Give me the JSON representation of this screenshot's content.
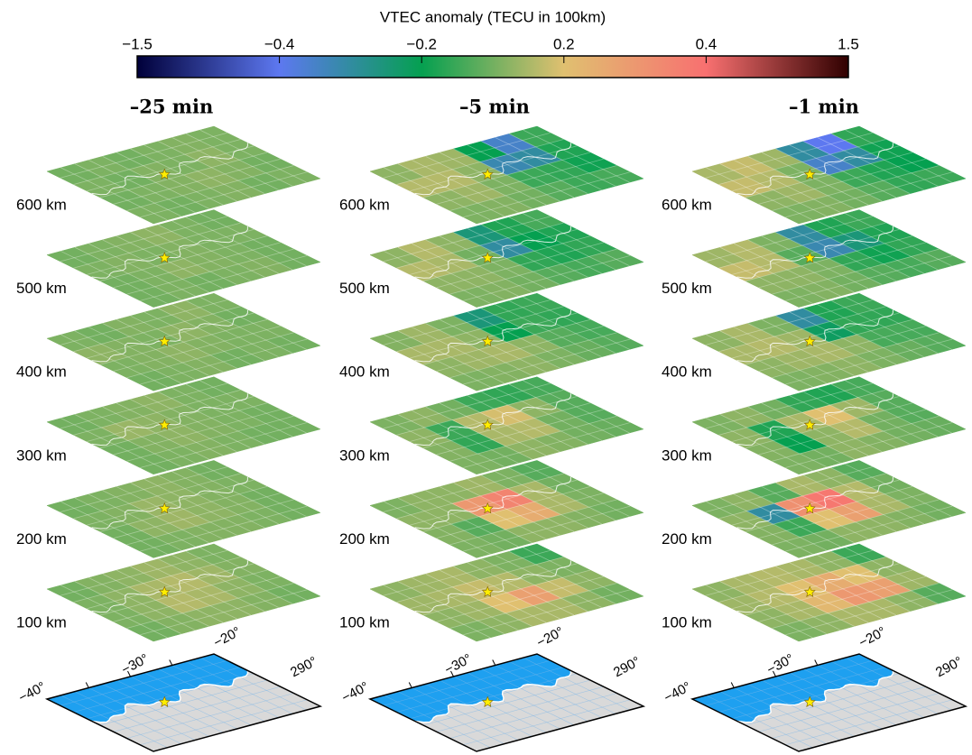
{
  "chart_data": {
    "type": "heatmap",
    "title": "VTEC anomaly (TECU in 100km)",
    "colorbar": {
      "xticks": [
        {
          "value": -1.5,
          "label": "−1.5"
        },
        {
          "value": -0.4,
          "label": "−0.4"
        },
        {
          "value": -0.2,
          "label": "−0.2"
        },
        0.2,
        0.4,
        1.5
      ],
      "colors": [
        "#00003a",
        "#5d78f0",
        "#05a050",
        "#e0c070",
        "#f87070",
        "#300000"
      ]
    },
    "panels": [
      {
        "title": "–25 min",
        "layers": [
          {
            "label": "600 km",
            "values": [
              [
                0,
                0.02,
                0,
                0.02,
                0.03,
                0.02
              ],
              [
                0.02,
                0,
                0.03,
                0.02,
                0.05,
                0.02
              ],
              [
                0,
                0.02,
                0.03,
                0.05,
                0.03,
                0
              ],
              [
                0.02,
                0,
                0.02,
                0.03,
                0,
                0.02
              ]
            ]
          },
          {
            "label": "500 km",
            "values": [
              [
                0,
                0.02,
                0.03,
                0.05,
                0.02,
                0
              ],
              [
                0.02,
                0.03,
                0.02,
                0.03,
                0.02,
                0.02
              ],
              [
                0,
                0.02,
                0.05,
                0.03,
                0.02,
                0
              ],
              [
                0,
                0.02,
                0,
                0.02,
                0.03,
                0
              ]
            ]
          },
          {
            "label": "400 km",
            "values": [
              [
                0.02,
                0,
                0.03,
                0.02,
                0.05,
                0.02
              ],
              [
                0.05,
                0.03,
                0.02,
                0.05,
                0.03,
                0
              ],
              [
                0.02,
                0.03,
                0.05,
                0.03,
                0.02,
                0.02
              ],
              [
                0,
                0.02,
                0.03,
                0,
                0.02,
                0
              ]
            ]
          },
          {
            "label": "300 km",
            "values": [
              [
                0,
                0.02,
                0.03,
                0.05,
                0.02,
                0
              ],
              [
                0.02,
                0.07,
                0.05,
                0.03,
                0.02,
                0.02
              ],
              [
                0,
                0.03,
                0.05,
                0.03,
                0.02,
                0
              ],
              [
                0,
                0.02,
                0.03,
                0.02,
                0,
                0
              ]
            ]
          },
          {
            "label": "200 km",
            "values": [
              [
                0,
                0.02,
                0.03,
                0.05,
                0.03,
                0
              ],
              [
                0.02,
                0.03,
                0.07,
                0.05,
                0.03,
                0.02
              ],
              [
                0,
                0.05,
                0.08,
                0.05,
                0.03,
                0
              ],
              [
                0,
                0.02,
                0.03,
                0.03,
                0.02,
                0
              ]
            ]
          },
          {
            "label": "100 km",
            "values": [
              [
                0,
                0.03,
                0.05,
                0.08,
                0.05,
                0.02
              ],
              [
                0.02,
                0.05,
                0.1,
                0.12,
                0.08,
                0.03
              ],
              [
                0.02,
                0.05,
                0.12,
                0.1,
                0.05,
                0.02
              ],
              [
                0,
                0.03,
                0.05,
                0.05,
                0.03,
                0
              ]
            ]
          }
        ]
      },
      {
        "title": "–5 min",
        "layers": [
          {
            "label": "600 km",
            "values": [
              [
                0.05,
                0.1,
                0.08,
                -0.2,
                -0.35,
                -0.1
              ],
              [
                0.12,
                0.12,
                0.05,
                -0.32,
                -0.3,
                -0.15
              ],
              [
                0.05,
                0.08,
                0.02,
                -0.1,
                -0.12,
                -0.18
              ],
              [
                0.02,
                0.03,
                0,
                -0.05,
                -0.1,
                -0.08
              ]
            ]
          },
          {
            "label": "500 km",
            "values": [
              [
                0.05,
                0.12,
                0.05,
                -0.25,
                -0.15,
                -0.08
              ],
              [
                0.12,
                0.1,
                0,
                -0.3,
                -0.2,
                -0.15
              ],
              [
                0.05,
                0.05,
                0.02,
                -0.12,
                -0.15,
                -0.12
              ],
              [
                0.02,
                0.03,
                0,
                -0.05,
                -0.08,
                -0.05
              ]
            ]
          },
          {
            "label": "400 km",
            "values": [
              [
                0.03,
                0.08,
                0.02,
                -0.25,
                -0.12,
                -0.1
              ],
              [
                0.1,
                0.1,
                0.05,
                -0.2,
                -0.1,
                -0.12
              ],
              [
                0.05,
                0.08,
                0.1,
                0.05,
                -0.05,
                -0.08
              ],
              [
                0.02,
                0.03,
                0.05,
                0.02,
                -0.02,
                -0.05
              ]
            ]
          },
          {
            "label": "300 km",
            "values": [
              [
                0.02,
                0.05,
                0,
                -0.1,
                -0.12,
                -0.08
              ],
              [
                0.05,
                -0.1,
                0.12,
                0.18,
                0.05,
                -0.05
              ],
              [
                0.03,
                -0.12,
                0.1,
                0.12,
                0,
                -0.05
              ],
              [
                0.02,
                0,
                0.05,
                0.03,
                0,
                -0.02
              ]
            ]
          },
          {
            "label": "200 km",
            "values": [
              [
                0.02,
                0.05,
                0.05,
                0.08,
                0.02,
                -0.05
              ],
              [
                0.05,
                0.05,
                0.3,
                0.35,
                0.1,
                0
              ],
              [
                0.03,
                -0.05,
                0.2,
                0.25,
                0.1,
                0.02
              ],
              [
                0.02,
                0,
                0.05,
                0.05,
                0.03,
                0
              ]
            ]
          },
          {
            "label": "100 km",
            "values": [
              [
                0.05,
                0.08,
                0.1,
                0.05,
                0.02,
                -0.1
              ],
              [
                0.08,
                0.1,
                0.15,
                0.12,
                0.05,
                0.02
              ],
              [
                0.05,
                0.08,
                0.2,
                0.28,
                0.15,
                0.05
              ],
              [
                0.02,
                0.05,
                0.1,
                0.1,
                0.05,
                0
              ]
            ]
          }
        ]
      },
      {
        "title": "–1 min",
        "layers": [
          {
            "label": "600 km",
            "values": [
              [
                0.1,
                0.15,
                0.08,
                -0.3,
                -0.4,
                -0.12
              ],
              [
                0.15,
                0.12,
                0.02,
                -0.35,
                -0.3,
                -0.18
              ],
              [
                0.05,
                0.08,
                0.02,
                -0.1,
                -0.15,
                -0.2
              ],
              [
                0.02,
                0.03,
                0,
                -0.05,
                -0.12,
                -0.1
              ]
            ]
          },
          {
            "label": "500 km",
            "values": [
              [
                0.08,
                0.12,
                0.02,
                -0.3,
                -0.15,
                -0.1
              ],
              [
                0.15,
                0.12,
                -0.05,
                -0.32,
                -0.25,
                -0.15
              ],
              [
                0.05,
                0.05,
                0.02,
                -0.12,
                -0.18,
                -0.12
              ],
              [
                0.02,
                0.03,
                0,
                -0.05,
                -0.08,
                -0.05
              ]
            ]
          },
          {
            "label": "400 km",
            "values": [
              [
                0.05,
                0.1,
                0.02,
                -0.3,
                -0.15,
                -0.1
              ],
              [
                0.1,
                0.12,
                0.08,
                -0.22,
                -0.12,
                -0.12
              ],
              [
                0.05,
                0.08,
                0.1,
                0.05,
                -0.08,
                -0.08
              ],
              [
                0.02,
                0.03,
                0.05,
                0.02,
                -0.02,
                -0.05
              ]
            ]
          },
          {
            "label": "300 km",
            "values": [
              [
                0.02,
                0.05,
                0,
                -0.12,
                -0.15,
                -0.08
              ],
              [
                0.05,
                -0.15,
                0.1,
                0.2,
                0.08,
                -0.05
              ],
              [
                0.03,
                -0.2,
                0.05,
                0.12,
                0,
                -0.05
              ],
              [
                0.02,
                0,
                0.05,
                0.03,
                0,
                -0.02
              ]
            ]
          },
          {
            "label": "200 km",
            "values": [
              [
                0.02,
                0.05,
                -0.05,
                0.1,
                0.05,
                -0.05
              ],
              [
                0.05,
                -0.3,
                0.32,
                0.38,
                0.12,
                0
              ],
              [
                0.03,
                -0.1,
                0.2,
                0.28,
                0.1,
                0.02
              ],
              [
                0.02,
                0,
                0.05,
                0.05,
                0.03,
                0
              ]
            ]
          },
          {
            "label": "100 km",
            "values": [
              [
                0.05,
                0.1,
                0.12,
                0.1,
                0.05,
                -0.1
              ],
              [
                0.08,
                0.12,
                0.2,
                0.25,
                0.2,
                0.05
              ],
              [
                0.05,
                0.1,
                0.22,
                0.3,
                0.28,
                0.08
              ],
              [
                0.02,
                0.05,
                0.1,
                0.1,
                0.05,
                -0.05
              ]
            ]
          }
        ]
      }
    ],
    "map": {
      "labels": [
        "−40°",
        "−30°",
        "−20°",
        "290°"
      ],
      "ocean_color": "#1ea0f0",
      "land_color": "#d9d9d9"
    }
  }
}
